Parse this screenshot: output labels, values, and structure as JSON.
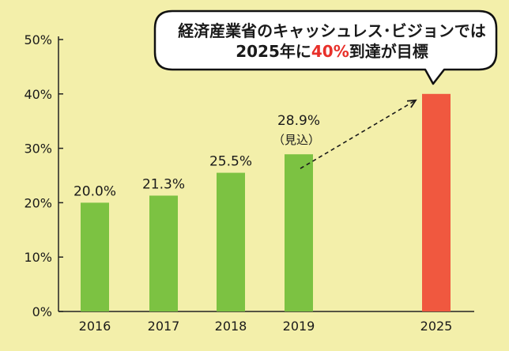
{
  "colors": {
    "background": "#f3efaa",
    "bar": "#7cc242",
    "highlight_bar": "#f0583f",
    "highlight_text": "#e8302a",
    "text": "#1a1a1a"
  },
  "chart_data": {
    "type": "bar",
    "categories": [
      "2016",
      "2017",
      "2018",
      "2019",
      "2025"
    ],
    "values": [
      20.0,
      21.3,
      25.5,
      28.9,
      40
    ],
    "data_labels": [
      "20.0%",
      "21.3%",
      "25.5%",
      "28.9%",
      ""
    ],
    "label_notes": [
      "",
      "",
      "",
      "（見込）",
      ""
    ],
    "highlight_index": 4,
    "y_ticks": [
      "0%",
      "10%",
      "20%",
      "30%",
      "40%",
      "50%"
    ],
    "ylim": [
      0,
      50
    ],
    "grid": false,
    "annotation": {
      "line1": "経済産業省のキャッシュレス･ビジョンでは",
      "line2_before": "2025年に",
      "line2_highlight": "40%",
      "line2_after": "到達が目標"
    }
  }
}
